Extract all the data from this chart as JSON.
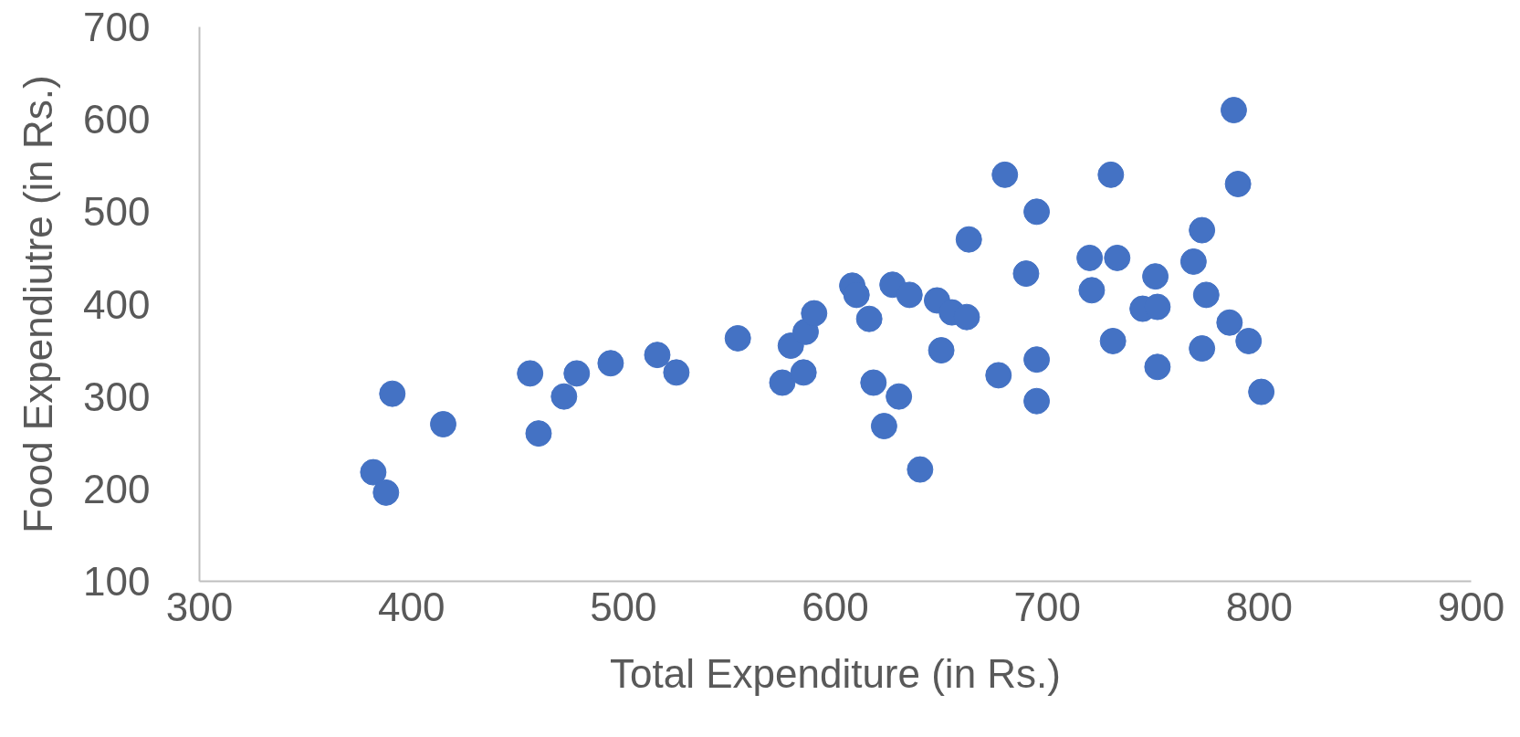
{
  "chart_data": {
    "type": "scatter",
    "xlabel": "Total Expenditure (in Rs.)",
    "ylabel": "Food Expendiutre (in Rs.)",
    "x": [
      382,
      388,
      391,
      415,
      456,
      460,
      472,
      478,
      494,
      516,
      525,
      554,
      575,
      579,
      585,
      586,
      590,
      608,
      610,
      616,
      618,
      623,
      627,
      630,
      635,
      640,
      648,
      650,
      655,
      662,
      663,
      677,
      680,
      690,
      695,
      695,
      695,
      720,
      721,
      730,
      731,
      733,
      745,
      751,
      752,
      752,
      769,
      773,
      773,
      775,
      786,
      788,
      790,
      795,
      801
    ],
    "series": [
      {
        "color": "#4472c4",
        "values": [
          218,
          196,
          303,
          270,
          325,
          260,
          300,
          325,
          336,
          345,
          326,
          363,
          315,
          355,
          326,
          370,
          390,
          420,
          410,
          384,
          315,
          268,
          421,
          300,
          410,
          221,
          404,
          350,
          391,
          386,
          470,
          323,
          540,
          433,
          500,
          340,
          295,
          450,
          415,
          540,
          360,
          450,
          395,
          430,
          397,
          332,
          446,
          480,
          352,
          410,
          380,
          610,
          530,
          360,
          305
        ]
      }
    ],
    "xlim": [
      300,
      900
    ],
    "ylim": [
      100,
      700
    ],
    "xticks": [
      300,
      400,
      500,
      600,
      700,
      800,
      900
    ],
    "yticks": [
      100,
      200,
      300,
      400,
      500,
      600,
      700
    ],
    "marker": "circle",
    "grid": false
  }
}
